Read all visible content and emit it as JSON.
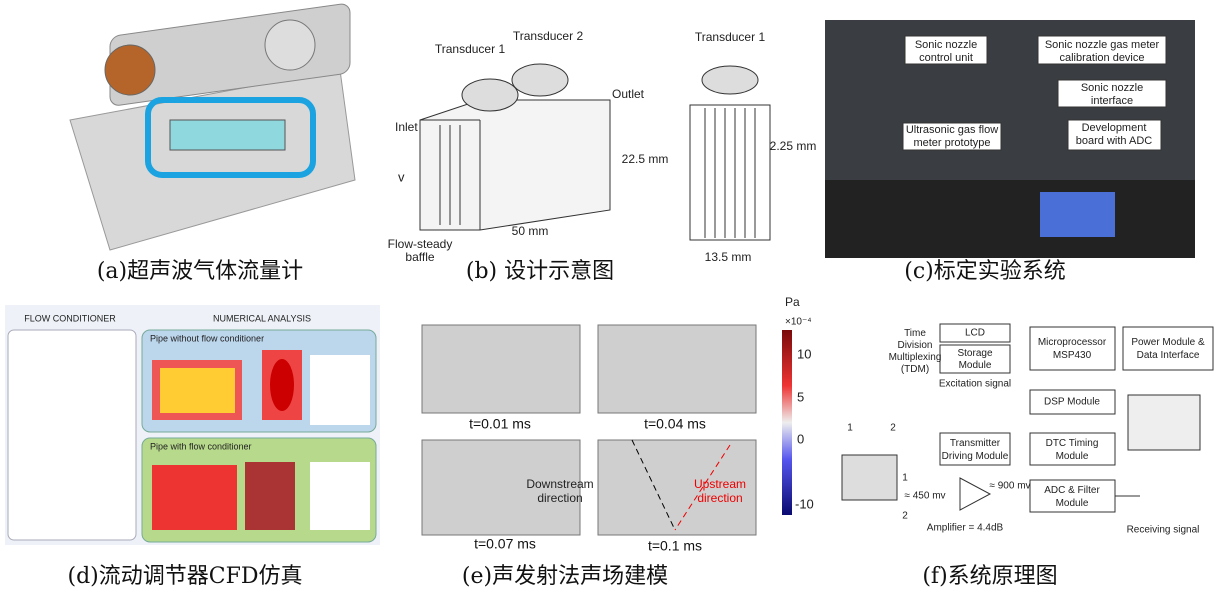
{
  "a": {
    "caption": "(a)超声波气体流量计"
  },
  "b": {
    "caption": "(b) 设计示意图",
    "transducer_1": "Transducer 1",
    "transducer_2": "Transducer 2",
    "outlet": "Outlet",
    "inlet": "Inlet",
    "velocity": "v",
    "baffle": [
      "Flow-steady",
      "baffle"
    ],
    "length": "50 mm",
    "side_transducer": "Transducer 1",
    "height": "22.5 mm",
    "gap": "2.25 mm",
    "width": "13.5 mm"
  },
  "c": {
    "caption": "(c)标定实验系统",
    "labels": [
      [
        "Sonic nozzle",
        "control unit"
      ],
      [
        "Sonic nozzle gas meter",
        "calibration device"
      ],
      [
        "Sonic nozzle",
        "interface"
      ],
      [
        "Ultrasonic gas flow",
        "meter prototype"
      ],
      [
        "Development",
        "board with ADC"
      ]
    ]
  },
  "d": {
    "caption": "(d)流动调节器CFD仿真",
    "left_title": "FLOW CONDITIONER",
    "right_title": "NUMERICAL ANALYSIS",
    "top_case": "Pipe without flow conditioner",
    "bottom_case": "Pipe with flow conditioner"
  },
  "e": {
    "caption": "(e)声发射法声场建模",
    "times": [
      "t=0.01 ms",
      "t=0.04 ms",
      "t=0.07 ms",
      "t=0.1 ms"
    ],
    "downstream": [
      "Downstream",
      "direction"
    ],
    "upstream": [
      "Upstream",
      "direction"
    ],
    "unit": "Pa",
    "scale": "×10⁻⁴",
    "ticks": [
      "10",
      "5",
      "0",
      "-10"
    ]
  },
  "f": {
    "caption": "(f)系统原理图",
    "lcd": "LCD",
    "storage": [
      "Storage",
      "Module"
    ],
    "mcu": [
      "Microprocessor",
      "MSP430"
    ],
    "power": [
      "Power Module &",
      "Data Interface"
    ],
    "tdm": [
      "Time",
      "Division",
      "Multiplexing",
      "(TDM)"
    ],
    "excitation": "Excitation signal",
    "dsp": "DSP Module",
    "transmitter": [
      "Transmitter",
      "Driving Module"
    ],
    "dtc": [
      "DTC Timing",
      "Module"
    ],
    "adc": [
      "ADC & Filter",
      "Module"
    ],
    "v_in": "≈ 450 mv",
    "v_out": "≈ 900 mv",
    "amplifier": "Amplifier = 4.4dB",
    "receiving": "Receiving signal",
    "path_labels": [
      "1",
      "2",
      "1",
      "2"
    ]
  }
}
